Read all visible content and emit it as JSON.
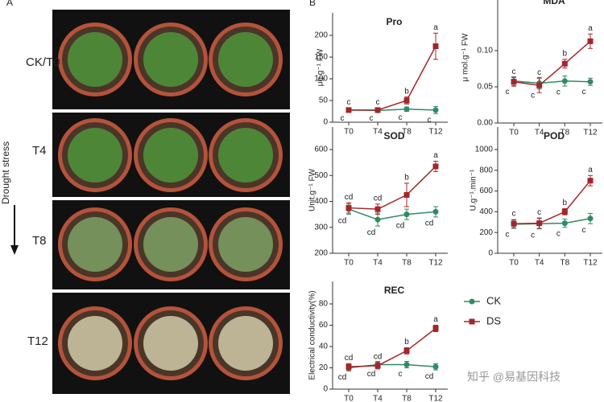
{
  "photo_panel": {
    "panel_label": "A",
    "row_labels": [
      "CK/T0",
      "T4",
      "T8",
      "T12"
    ],
    "arrow_label": "Drought stress"
  },
  "charts_label": "B",
  "watermark": "知乎 @易基因科技",
  "chart_data": [
    {
      "type": "line",
      "title": "Pro",
      "ylabel": "μg.g⁻¹ FW",
      "categories": [
        "T0",
        "T4",
        "T8",
        "T12"
      ],
      "ylim": [
        0,
        200
      ],
      "yticks": [
        0,
        50,
        100,
        150,
        200
      ],
      "series": [
        {
          "name": "CK",
          "color": "#2e8b64",
          "marker": "circle",
          "values": [
            28,
            27,
            30,
            28
          ],
          "errors": [
            5,
            4,
            5,
            8
          ],
          "letters": [
            "c",
            "c",
            "c",
            "c"
          ]
        },
        {
          "name": "DS",
          "color": "#a3262a",
          "marker": "square",
          "values": [
            28,
            28,
            50,
            175
          ],
          "errors": [
            5,
            5,
            8,
            30
          ],
          "letters": [
            "c",
            "c",
            "b",
            "a"
          ]
        }
      ]
    },
    {
      "type": "line",
      "title": "MDA",
      "ylabel": "μ mol.g⁻¹ FW",
      "categories": [
        "T0",
        "T4",
        "T8",
        "T12"
      ],
      "ylim": [
        0,
        0.15
      ],
      "yticks": [
        {
          "value": 0,
          "label": "0.00"
        },
        {
          "value": 0.05,
          "label": "0.05"
        },
        {
          "value": 0.1,
          "label": "0.10"
        }
      ],
      "series": [
        {
          "name": "CK",
          "color": "#2e8b64",
          "marker": "circle",
          "values": [
            0.058,
            0.055,
            0.058,
            0.057
          ],
          "errors": [
            0.006,
            0.008,
            0.007,
            0.005
          ],
          "letters": [
            "c",
            "c",
            "c",
            "c"
          ]
        },
        {
          "name": "DS",
          "color": "#a3262a",
          "marker": "square",
          "values": [
            0.057,
            0.052,
            0.082,
            0.113
          ],
          "errors": [
            0.006,
            0.01,
            0.006,
            0.01
          ],
          "letters": [
            "c",
            "c",
            "b",
            "a"
          ]
        }
      ]
    },
    {
      "type": "line",
      "title": "SOD",
      "ylabel": "Unit.g⁻¹ FW",
      "categories": [
        "T0",
        "T4",
        "T8",
        "T12"
      ],
      "ylim": [
        200,
        600
      ],
      "yticks": [
        200,
        300,
        400,
        500,
        600
      ],
      "series": [
        {
          "name": "CK",
          "color": "#2e8b64",
          "marker": "circle",
          "values": [
            370,
            330,
            350,
            360
          ],
          "errors": [
            20,
            25,
            20,
            20
          ],
          "letters": [
            "cd",
            "cd",
            "cd",
            "cd"
          ]
        },
        {
          "name": "DS",
          "color": "#a3262a",
          "marker": "square",
          "values": [
            375,
            370,
            425,
            535
          ],
          "errors": [
            20,
            20,
            45,
            20
          ],
          "letters": [
            "cd",
            "cd",
            "b",
            "a"
          ]
        }
      ]
    },
    {
      "type": "line",
      "title": "POD",
      "ylabel": "U.g⁻¹.min⁻¹",
      "categories": [
        "T0",
        "T4",
        "T8",
        "T12"
      ],
      "ylim": [
        0,
        1000
      ],
      "yticks": [
        0,
        200,
        400,
        600,
        800,
        1000
      ],
      "series": [
        {
          "name": "CK",
          "color": "#2e8b64",
          "marker": "circle",
          "values": [
            280,
            285,
            290,
            335
          ],
          "errors": [
            40,
            50,
            40,
            50
          ],
          "letters": [
            "c",
            "c",
            "c",
            "c"
          ]
        },
        {
          "name": "DS",
          "color": "#a3262a",
          "marker": "square",
          "values": [
            285,
            290,
            400,
            700
          ],
          "errors": [
            40,
            50,
            30,
            50
          ],
          "letters": [
            "c",
            "c",
            "b",
            "a"
          ]
        }
      ]
    },
    {
      "type": "line",
      "title": "REC",
      "ylabel": "Electrical conductivity(%)",
      "categories": [
        "T0",
        "T4",
        "T8",
        "T12"
      ],
      "ylim": [
        0,
        80
      ],
      "yticks": [
        0,
        20,
        40,
        60,
        80
      ],
      "series": [
        {
          "name": "CK",
          "color": "#2e8b64",
          "marker": "circle",
          "values": [
            20,
            23,
            23,
            21
          ],
          "errors": [
            3,
            3,
            3,
            3
          ],
          "letters": [
            "cd",
            "cd",
            "c",
            "cd"
          ]
        },
        {
          "name": "DS",
          "color": "#a3262a",
          "marker": "square",
          "values": [
            21,
            22,
            36,
            57
          ],
          "errors": [
            3,
            3,
            3,
            3
          ],
          "letters": [
            "cd",
            "cd",
            "b",
            "a"
          ]
        }
      ]
    }
  ]
}
